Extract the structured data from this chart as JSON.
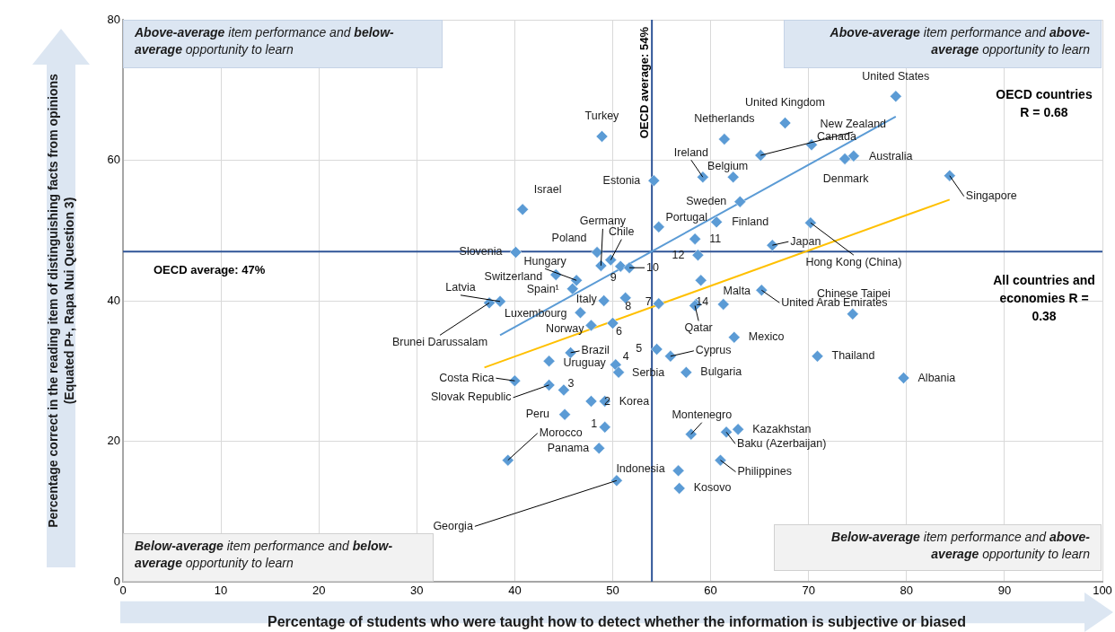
{
  "chart_data": {
    "type": "scatter",
    "xlabel": "Percentage of students who were taught how to detect whether the information is subjective or biased",
    "ylabel": "Percentage correct in the reading item of distinguishing facts from opinions (Equated P+, Rapa Nui Question 3)",
    "xlim": [
      0,
      100
    ],
    "ylim": [
      0,
      80
    ],
    "xticks": [
      0,
      10,
      20,
      30,
      40,
      50,
      60,
      70,
      80,
      90,
      100
    ],
    "yticks": [
      0,
      20,
      40,
      60,
      80
    ],
    "grid": true,
    "series": [
      {
        "type": "scatter",
        "color": "#5b9bd5",
        "marker": "diamond",
        "x": [
          78.9,
          67.6,
          61.4,
          65.1,
          70.3,
          74.6,
          73.7,
          59.2,
          62.3,
          54.2,
          48.9,
          40.8,
          63.0,
          54.7,
          60.6,
          58.4,
          58.7,
          66.3,
          70.2,
          84.4,
          40.1,
          48.4,
          48.8,
          49.8,
          50.8,
          51.7,
          46.3,
          44.2,
          45.9,
          38.5,
          37.4,
          46.7,
          49.1,
          51.3,
          54.7,
          47.8,
          50.0,
          59.0,
          58.5,
          58.4,
          61.3,
          65.2,
          74.5,
          62.4,
          55.9,
          54.5,
          70.9,
          79.7,
          57.5,
          45.7,
          43.5,
          50.3,
          50.6,
          40.0,
          43.5,
          45.0,
          47.8,
          49.2,
          45.1,
          49.2,
          48.6,
          39.3,
          58.0,
          61.6,
          62.8,
          61.0,
          56.7,
          56.8,
          50.4
        ],
        "values": [
          69.1,
          65.3,
          63.0,
          60.7,
          62.2,
          60.6,
          60.2,
          57.6,
          57.6,
          57.1,
          63.4,
          53.0,
          54.1,
          50.5,
          51.2,
          48.8,
          46.5,
          47.9,
          51.1,
          57.8,
          46.9,
          46.9,
          45.0,
          45.8,
          44.9,
          44.7,
          42.9,
          43.7,
          41.7,
          39.9,
          39.7,
          38.3,
          40.0,
          40.4,
          39.6,
          36.5,
          36.8,
          42.9,
          39.5,
          39.3,
          39.5,
          41.5,
          38.1,
          34.8,
          32.1,
          33.1,
          32.1,
          29.0,
          29.8,
          32.6,
          31.4,
          30.9,
          29.8,
          28.6,
          28.0,
          27.3,
          25.7,
          25.7,
          23.8,
          22.0,
          19.0,
          17.3,
          21.0,
          21.3,
          21.7,
          17.3,
          15.8,
          13.3,
          14.4
        ]
      },
      {
        "type": "line",
        "color": "#5b9bd5",
        "marker": "none",
        "x": [
          38.5,
          78.9
        ],
        "values": [
          35.1,
          66.2
        ]
      },
      {
        "type": "line",
        "color": "#ffc000",
        "marker": "none",
        "x": [
          36.9,
          84.4
        ],
        "values": [
          30.5,
          54.4
        ]
      }
    ],
    "ref_lines": [
      {
        "axis": "x",
        "value": 54,
        "label": "OECD average: 54%",
        "color": "#2f5597"
      },
      {
        "axis": "y",
        "value": 47,
        "label": "OECD average: 47%",
        "color": "#2f5597"
      }
    ],
    "annotations": [
      "Above-average item performance and below-average opportunity to learn",
      "Above-average item performance and above-average opportunity to learn",
      "Below-average item performance and below-average opportunity to learn",
      "Below-average item performance and above-average opportunity to learn",
      "OECD countries R = 0.68",
      "All countries and economies R = 0.38",
      {
        "text": "United States",
        "x": 78.9,
        "y": 69.1
      },
      {
        "text": "United Kingdom",
        "x": 67.6,
        "y": 65.3
      },
      {
        "text": "Netherlands",
        "x": 61.4,
        "y": 63.0
      },
      {
        "text": "New Zealand",
        "x": 65.1,
        "y": 60.7
      },
      {
        "text": "Canada",
        "x": 70.3,
        "y": 62.2
      },
      {
        "text": "Australia",
        "x": 74.6,
        "y": 60.6
      },
      {
        "text": "Denmark",
        "x": 73.7,
        "y": 60.2
      },
      {
        "text": "Ireland",
        "x": 59.2,
        "y": 57.6
      },
      {
        "text": "Belgium",
        "x": 62.3,
        "y": 57.6
      },
      {
        "text": "Estonia",
        "x": 54.2,
        "y": 57.1
      },
      {
        "text": "Turkey",
        "x": 48.9,
        "y": 63.4
      },
      {
        "text": "Israel",
        "x": 40.8,
        "y": 53.0
      },
      {
        "text": "Sweden",
        "x": 63.0,
        "y": 54.1
      },
      {
        "text": "Portugal",
        "x": 54.7,
        "y": 50.5
      },
      {
        "text": "Finland",
        "x": 60.6,
        "y": 51.2
      },
      {
        "text": "11",
        "x": 58.4,
        "y": 48.8
      },
      {
        "text": "12",
        "x": 58.7,
        "y": 46.5
      },
      {
        "text": "Japan",
        "x": 66.3,
        "y": 47.9
      },
      {
        "text": "Hong Kong (China)",
        "x": 70.2,
        "y": 51.1
      },
      {
        "text": "Singapore",
        "x": 84.4,
        "y": 57.8
      },
      {
        "text": "Slovenia",
        "x": 40.1,
        "y": 46.9
      },
      {
        "text": "Poland",
        "x": 48.4,
        "y": 46.9
      },
      {
        "text": "Germany",
        "x": 48.8,
        "y": 45.0
      },
      {
        "text": "Chile",
        "x": 49.8,
        "y": 45.8
      },
      {
        "text": "9",
        "x": 50.8,
        "y": 44.9
      },
      {
        "text": "10",
        "x": 51.7,
        "y": 44.7
      },
      {
        "text": "Hungary",
        "x": 46.3,
        "y": 42.9
      },
      {
        "text": "Switzerland",
        "x": 44.2,
        "y": 43.7
      },
      {
        "text": "Spain¹",
        "x": 45.9,
        "y": 41.7
      },
      {
        "text": "Latvia",
        "x": 38.5,
        "y": 39.9
      },
      {
        "text": "Brunei Darussalam",
        "x": 37.4,
        "y": 39.7
      },
      {
        "text": "Luxembourg",
        "x": 46.7,
        "y": 38.3
      },
      {
        "text": "Italy",
        "x": 49.1,
        "y": 40.0
      },
      {
        "text": "8",
        "x": 51.3,
        "y": 40.4
      },
      {
        "text": "7",
        "x": 54.7,
        "y": 39.6
      },
      {
        "text": "Norway",
        "x": 47.8,
        "y": 36.5
      },
      {
        "text": "6",
        "x": 50.0,
        "y": 36.8
      },
      {
        "text": "14",
        "x": 58.5,
        "y": 39.5
      },
      {
        "text": "Qatar",
        "x": 58.4,
        "y": 39.3
      },
      {
        "text": "Malta",
        "x": 61.3,
        "y": 39.5
      },
      {
        "text": "United Arab Emirates",
        "x": 65.2,
        "y": 41.5
      },
      {
        "text": "Chinese Taipei",
        "x": 74.5,
        "y": 38.1
      },
      {
        "text": "Mexico",
        "x": 62.4,
        "y": 34.8
      },
      {
        "text": "Cyprus",
        "x": 55.9,
        "y": 32.1
      },
      {
        "text": "5",
        "x": 54.5,
        "y": 33.1
      },
      {
        "text": "Thailand",
        "x": 70.9,
        "y": 32.1
      },
      {
        "text": "Albania",
        "x": 79.7,
        "y": 29.0
      },
      {
        "text": "Bulgaria",
        "x": 57.5,
        "y": 29.8
      },
      {
        "text": "Brazil",
        "x": 45.7,
        "y": 32.6
      },
      {
        "text": "Uruguay",
        "x": 43.5,
        "y": 31.4
      },
      {
        "text": "4",
        "x": 50.3,
        "y": 30.9
      },
      {
        "text": "Serbia",
        "x": 50.6,
        "y": 29.8
      },
      {
        "text": "Costa Rica",
        "x": 40.0,
        "y": 28.6
      },
      {
        "text": "Slovak Republic",
        "x": 43.5,
        "y": 28.0
      },
      {
        "text": "3",
        "x": 45.0,
        "y": 27.3
      },
      {
        "text": "2",
        "x": 47.8,
        "y": 25.7
      },
      {
        "text": "Korea",
        "x": 49.2,
        "y": 25.7
      },
      {
        "text": "Peru",
        "x": 45.1,
        "y": 23.8
      },
      {
        "text": "1",
        "x": 49.2,
        "y": 22.0
      },
      {
        "text": "Panama",
        "x": 48.6,
        "y": 19.0
      },
      {
        "text": "Morocco",
        "x": 39.3,
        "y": 17.3
      },
      {
        "text": "Montenegro",
        "x": 58.0,
        "y": 21.0
      },
      {
        "text": "Baku (Azerbaijan)",
        "x": 61.6,
        "y": 21.3
      },
      {
        "text": "Kazakhstan",
        "x": 62.8,
        "y": 21.7
      },
      {
        "text": "Philippines",
        "x": 61.0,
        "y": 17.3
      },
      {
        "text": "Indonesia",
        "x": 56.7,
        "y": 15.8
      },
      {
        "text": "Kosovo",
        "x": 56.8,
        "y": 13.3
      },
      {
        "text": "Georgia",
        "x": 50.4,
        "y": 14.4
      }
    ]
  }
}
